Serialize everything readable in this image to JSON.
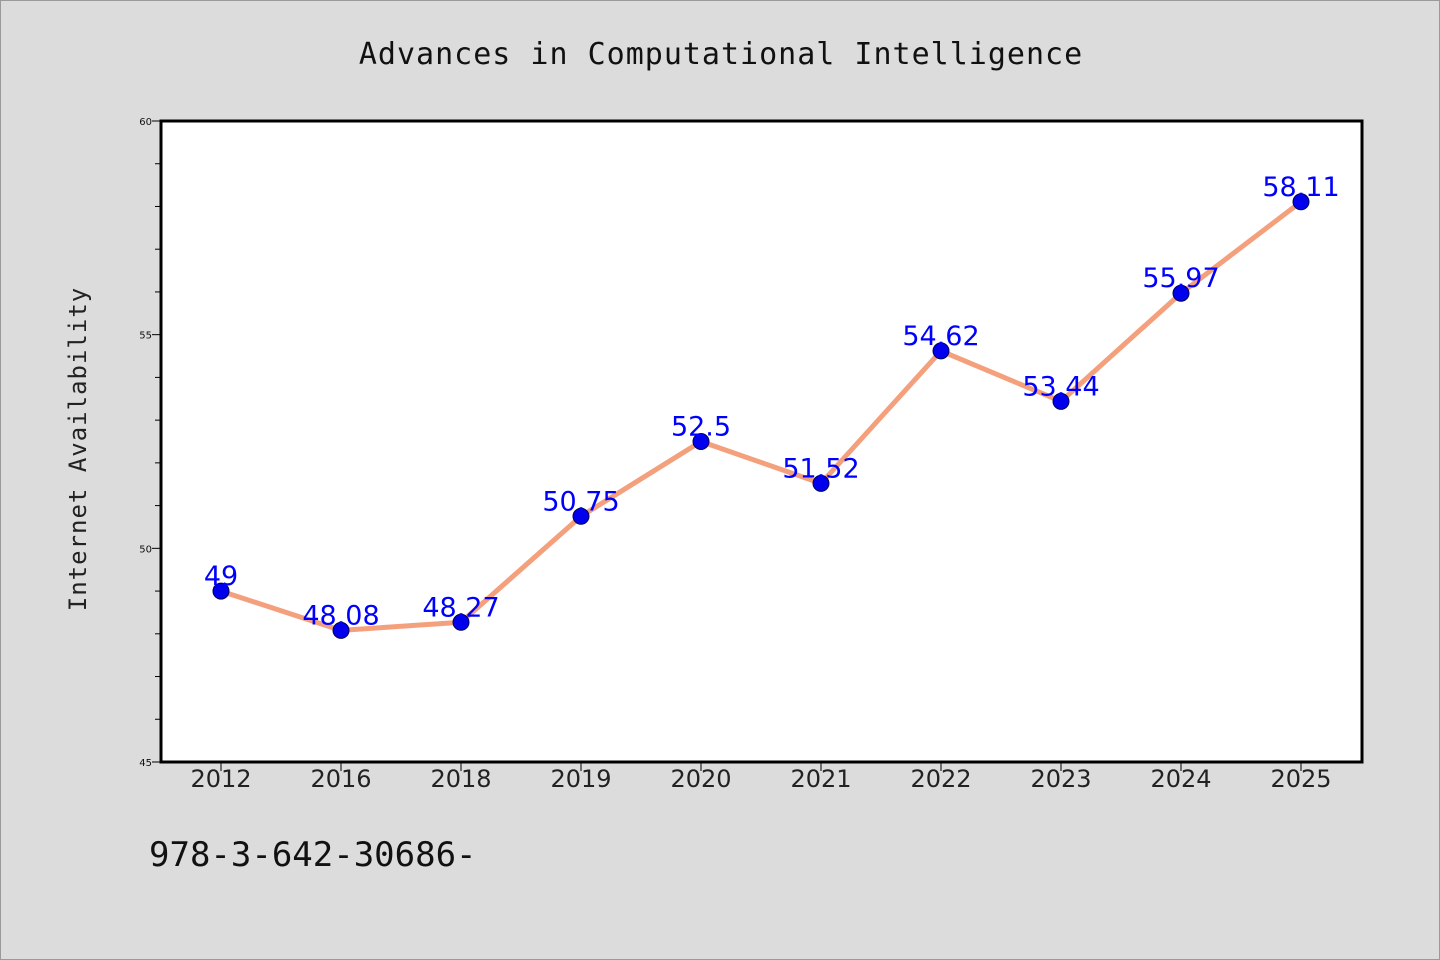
{
  "chart_data": {
    "type": "line",
    "title": "Advances in Computational Intelligence",
    "xlabel": "",
    "ylabel": "Internet Availability",
    "categories": [
      "2012",
      "2016",
      "2018",
      "2019",
      "2020",
      "2021",
      "2022",
      "2023",
      "2024",
      "2025"
    ],
    "series": [
      {
        "values": [
          49,
          48.08,
          48.27,
          50.75,
          52.5,
          51.52,
          54.62,
          53.44,
          55.97,
          58.11
        ],
        "labels": [
          "49",
          "48.08",
          "48.27",
          "50.75",
          "52.5",
          "51.52",
          "54.62",
          "53.44",
          "55.97",
          "58.11"
        ],
        "line_color": "#f4a07c",
        "marker_color": "#0000ee",
        "label_color": "#0000ff"
      }
    ],
    "ylim": [
      45,
      60
    ],
    "yticks": [
      "45",
      "50",
      "55",
      "60"
    ],
    "grid": false,
    "legend": "none",
    "background_color": "#dcdcdc",
    "plot_background_color": "#ffffff"
  },
  "footer": {
    "text": "978-3-642-30686-"
  }
}
